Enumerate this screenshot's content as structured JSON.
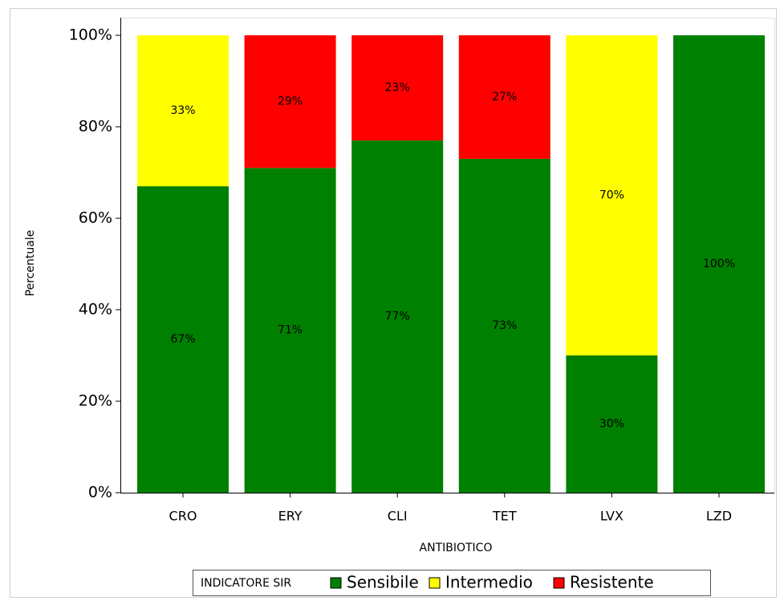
{
  "chart_data": {
    "type": "stacked_bar",
    "categories": [
      "CRO",
      "ERY",
      "CLI",
      "TET",
      "LVX",
      "LZD"
    ],
    "x_label": "ANTIBIOTICO",
    "y_label": "Percentuale",
    "legend_title": "INDICATORE SIR",
    "legend_position": "bottom",
    "series": [
      {
        "name": "Sensibile",
        "color": "#008000",
        "values": [
          67,
          71,
          77,
          73,
          30,
          100
        ],
        "value_labels": [
          "67%",
          "71%",
          "77%",
          "73%",
          "30%",
          "100%"
        ]
      },
      {
        "name": "Intermedio",
        "color": "#ffff00",
        "values": [
          33,
          0,
          0,
          0,
          70,
          0
        ],
        "value_labels": [
          "33%",
          null,
          null,
          null,
          "70%",
          null
        ]
      },
      {
        "name": "Resistente",
        "color": "#ff0000",
        "values": [
          0,
          29,
          23,
          27,
          0,
          0
        ],
        "value_labels": [
          null,
          "29%",
          "23%",
          "27%",
          null,
          null
        ]
      }
    ],
    "ylim": [
      0,
      100
    ],
    "yticks": [
      {
        "value": 0,
        "label": "0%"
      },
      {
        "value": 20,
        "label": "20%"
      },
      {
        "value": 40,
        "label": "40%"
      },
      {
        "value": 60,
        "label": "60%"
      },
      {
        "value": 80,
        "label": "80%"
      },
      {
        "value": 100,
        "label": "100%"
      }
    ]
  }
}
